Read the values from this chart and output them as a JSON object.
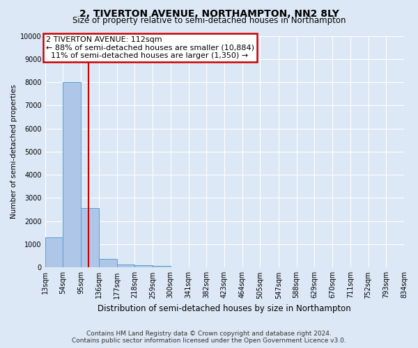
{
  "title": "2, TIVERTON AVENUE, NORTHAMPTON, NN2 8LY",
  "subtitle": "Size of property relative to semi-detached houses in Northampton",
  "xlabel": "Distribution of semi-detached houses by size in Northampton",
  "ylabel": "Number of semi-detached properties",
  "bin_edges": [
    13,
    54,
    95,
    136,
    177,
    218,
    259,
    300,
    341,
    382,
    423,
    464,
    505,
    547,
    588,
    629,
    670,
    711,
    752,
    793,
    834
  ],
  "bar_heights": [
    1300,
    8000,
    2550,
    380,
    120,
    100,
    60,
    0,
    0,
    0,
    0,
    0,
    0,
    0,
    0,
    0,
    0,
    0,
    0,
    0
  ],
  "bar_color": "#aec6e8",
  "bar_edge_color": "#5a9fd4",
  "property_size": 112,
  "property_line_color": "#cc0000",
  "annotation_box_facecolor": "#ffffff",
  "annotation_border_color": "#cc0000",
  "annotation_text_line1": "2 TIVERTON AVENUE: 112sqm",
  "annotation_text_line2": "← 88% of semi-detached houses are smaller (10,884)",
  "annotation_text_line3": "  11% of semi-detached houses are larger (1,350) →",
  "ylim": [
    0,
    10000
  ],
  "yticks": [
    0,
    1000,
    2000,
    3000,
    4000,
    5000,
    6000,
    7000,
    8000,
    9000,
    10000
  ],
  "background_color": "#dce8f5",
  "grid_color": "#ffffff",
  "footer_line1": "Contains HM Land Registry data © Crown copyright and database right 2024.",
  "footer_line2": "Contains public sector information licensed under the Open Government Licence v3.0.",
  "title_fontsize": 10,
  "subtitle_fontsize": 8.5,
  "ylabel_fontsize": 7.5,
  "xlabel_fontsize": 8.5,
  "tick_label_fontsize": 7,
  "annotation_fontsize": 8,
  "footer_fontsize": 6.5
}
